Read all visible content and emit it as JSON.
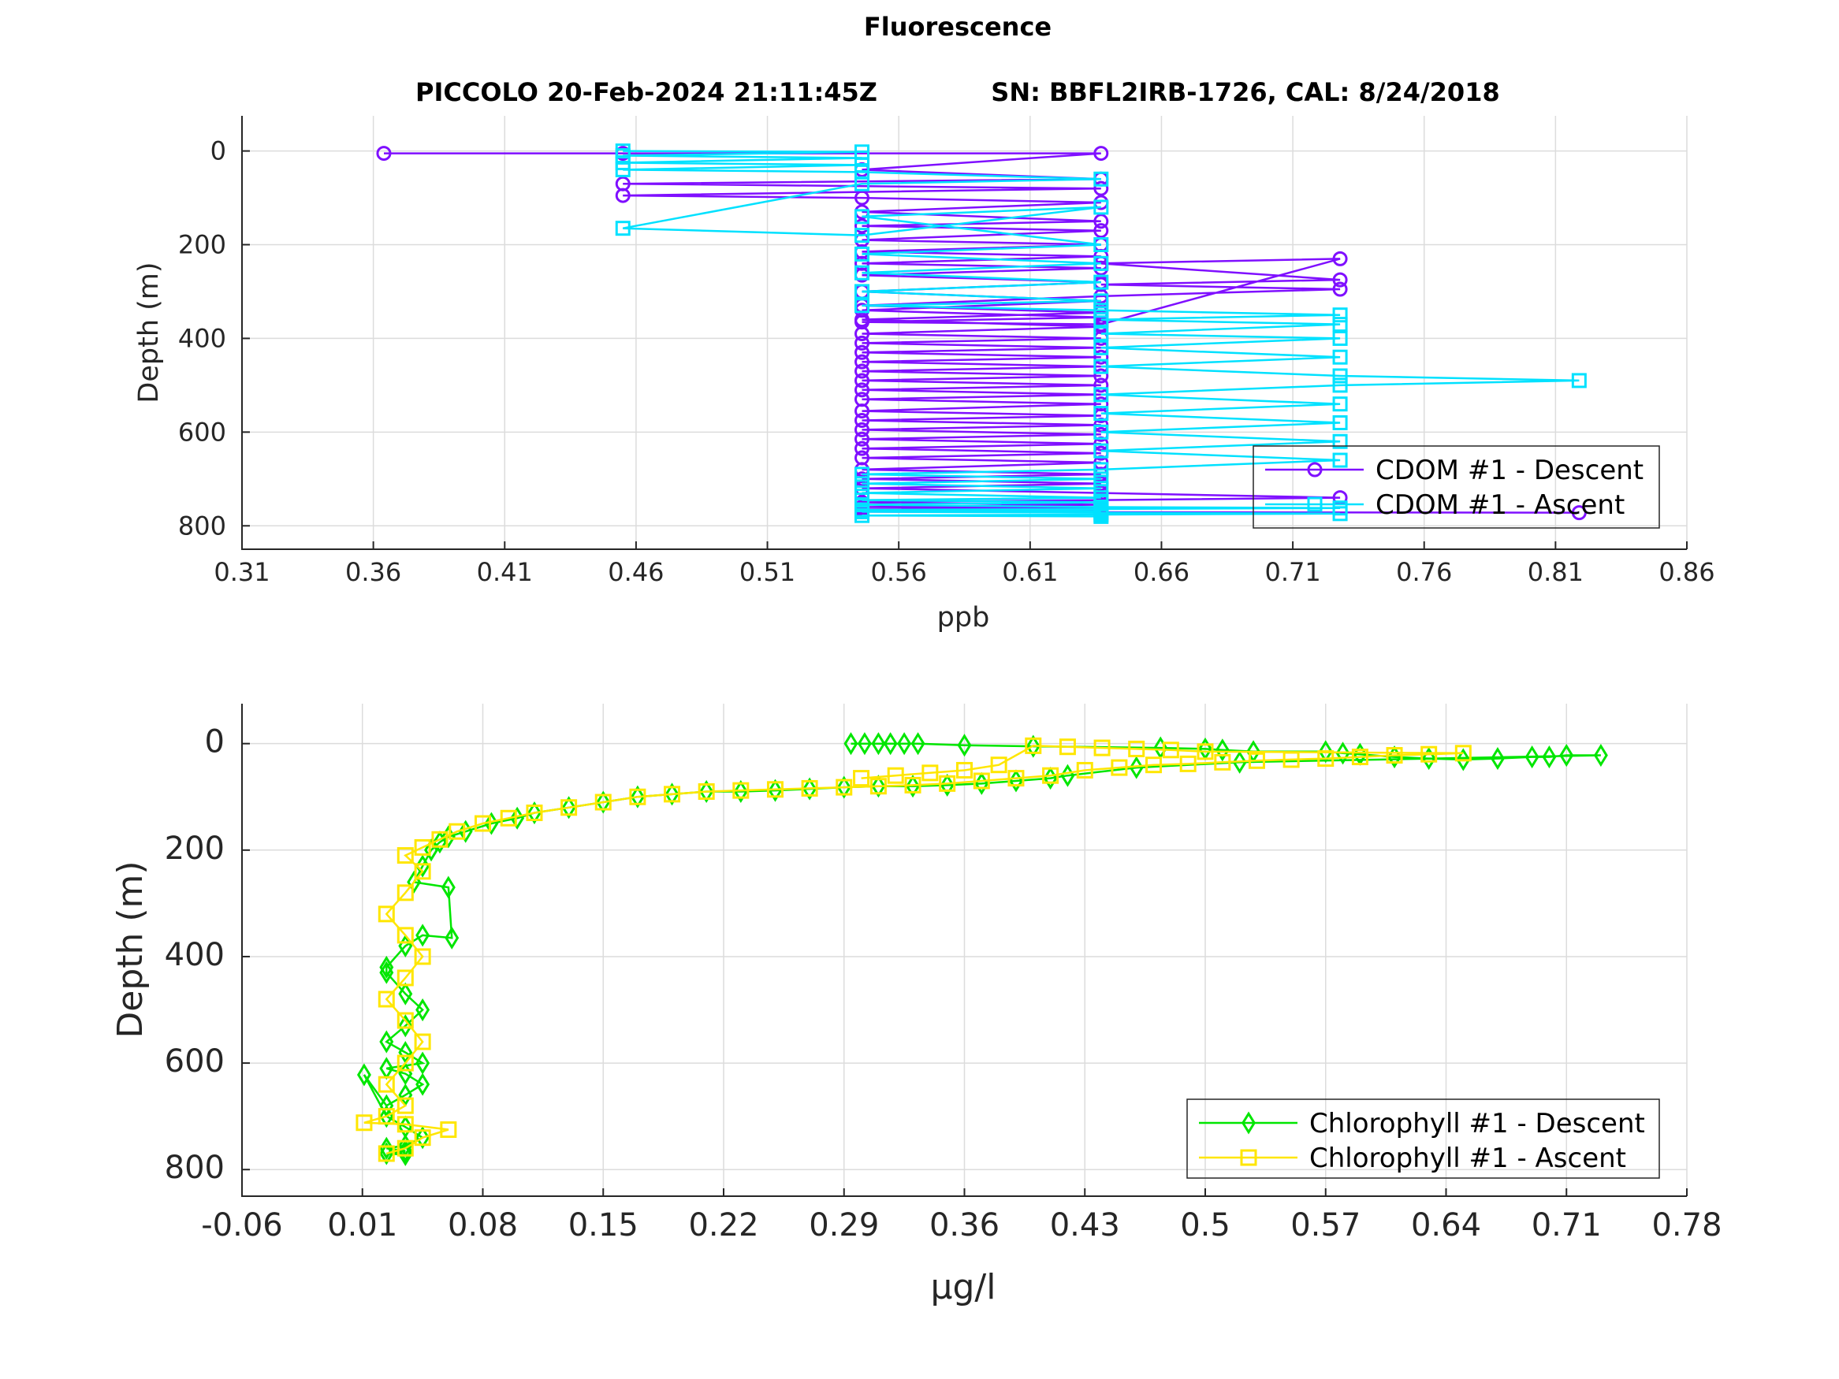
{
  "figure": {
    "title": "Fluorescence",
    "subtitle_left": "PICCOLO 20-Feb-2024 21:11:45Z",
    "subtitle_right": "SN: BBFL2IRB-1726, CAL: 8/24/2018"
  },
  "chart_data": [
    {
      "type": "line",
      "title": "",
      "xlabel": "ppb",
      "ylabel": "Depth (m)",
      "xlim": [
        0.31,
        0.86
      ],
      "ylim": [
        -75,
        850
      ],
      "y_reversed": true,
      "grid": true,
      "legend_position": "bottom-right",
      "xticks": [
        "0.31",
        "0.36",
        "0.41",
        "0.46",
        "0.51",
        "0.56",
        "0.61",
        "0.66",
        "0.71",
        "0.76",
        "0.81",
        "0.86"
      ],
      "yticks": [
        "0",
        "200",
        "400",
        "600",
        "800"
      ],
      "series": [
        {
          "name": "CDOM #1 - Descent",
          "color": "#7f0fff",
          "marker": "circle",
          "x": [
            0.364,
            0.455,
            0.637,
            0.546,
            0.637,
            0.455,
            0.637,
            0.455,
            0.546,
            0.637,
            0.546,
            0.637,
            0.546,
            0.637,
            0.546,
            0.637,
            0.546,
            0.637,
            0.546,
            0.637,
            0.546,
            0.637,
            0.546,
            0.637,
            0.546,
            0.637,
            0.546,
            0.637,
            0.728,
            0.637,
            0.728,
            0.637,
            0.728,
            0.637,
            0.546,
            0.637,
            0.546,
            0.637,
            0.546,
            0.637,
            0.546,
            0.637,
            0.546,
            0.637,
            0.546,
            0.637,
            0.546,
            0.637,
            0.546,
            0.637,
            0.546,
            0.637,
            0.546,
            0.637,
            0.546,
            0.637,
            0.546,
            0.637,
            0.546,
            0.637,
            0.546,
            0.637,
            0.546,
            0.637,
            0.546,
            0.637,
            0.546,
            0.637,
            0.546,
            0.637,
            0.546,
            0.637,
            0.728,
            0.637,
            0.546,
            0.637,
            0.546,
            0.637,
            0.546,
            0.637,
            0.546,
            0.637,
            0.546,
            0.637,
            0.819
          ],
          "y": [
            5,
            5,
            5,
            40,
            60,
            70,
            80,
            95,
            100,
            110,
            130,
            150,
            160,
            170,
            190,
            200,
            215,
            225,
            240,
            250,
            265,
            280,
            300,
            320,
            340,
            355,
            365,
            370,
            230,
            240,
            275,
            285,
            295,
            310,
            330,
            345,
            360,
            375,
            390,
            400,
            410,
            420,
            430,
            440,
            450,
            460,
            470,
            480,
            490,
            500,
            510,
            520,
            530,
            540,
            555,
            565,
            575,
            585,
            595,
            605,
            615,
            625,
            635,
            645,
            655,
            665,
            680,
            690,
            700,
            710,
            720,
            730,
            740,
            745,
            750,
            755,
            760,
            762,
            765,
            766,
            768,
            769,
            770,
            771,
            772
          ]
        },
        {
          "name": "CDOM #1 - Ascent",
          "color": "#00e1ff",
          "marker": "square",
          "x": [
            0.455,
            0.546,
            0.455,
            0.546,
            0.455,
            0.546,
            0.455,
            0.546,
            0.637,
            0.546,
            0.455,
            0.546,
            0.637,
            0.546,
            0.637,
            0.546,
            0.637,
            0.546,
            0.637,
            0.546,
            0.637,
            0.546,
            0.637,
            0.728,
            0.637,
            0.728,
            0.637,
            0.728,
            0.637,
            0.728,
            0.637,
            0.728,
            0.819,
            0.728,
            0.637,
            0.728,
            0.637,
            0.728,
            0.637,
            0.728,
            0.637,
            0.728,
            0.637,
            0.546,
            0.637,
            0.546,
            0.637,
            0.546,
            0.637,
            0.546,
            0.637,
            0.546,
            0.637,
            0.728,
            0.637,
            0.546,
            0.637,
            0.546,
            0.637,
            0.728,
            0.637,
            0.546,
            0.637
          ],
          "y": [
            0,
            2,
            10,
            15,
            25,
            30,
            40,
            45,
            60,
            70,
            165,
            180,
            120,
            140,
            200,
            220,
            240,
            260,
            280,
            300,
            320,
            330,
            340,
            350,
            360,
            370,
            390,
            400,
            420,
            440,
            460,
            480,
            490,
            500,
            520,
            540,
            560,
            580,
            600,
            620,
            640,
            660,
            680,
            690,
            700,
            710,
            720,
            730,
            740,
            745,
            750,
            755,
            760,
            762,
            764,
            766,
            768,
            770,
            772,
            774,
            776,
            778,
            780
          ]
        }
      ]
    },
    {
      "type": "line",
      "title": "",
      "xlabel": "μg/l",
      "ylabel": "Depth (m)",
      "xlim": [
        -0.06,
        0.78
      ],
      "ylim": [
        -75,
        850
      ],
      "y_reversed": true,
      "grid": true,
      "legend_position": "bottom-right",
      "xticks": [
        "-0.06",
        "0.01",
        "0.08",
        "0.15",
        "0.22",
        "0.29",
        "0.36",
        "0.43",
        "0.5",
        "0.57",
        "0.64",
        "0.71",
        "0.78"
      ],
      "yticks": [
        "0",
        "200",
        "400",
        "600",
        "800"
      ],
      "series": [
        {
          "name": "Chlorophyll #1 - Descent",
          "color": "#00e600",
          "marker": "diamond",
          "x": [
            0.294,
            0.302,
            0.31,
            0.317,
            0.325,
            0.333,
            0.36,
            0.4,
            0.474,
            0.5,
            0.51,
            0.528,
            0.57,
            0.58,
            0.59,
            0.61,
            0.63,
            0.65,
            0.67,
            0.69,
            0.7,
            0.71,
            0.73,
            0.52,
            0.46,
            0.42,
            0.41,
            0.39,
            0.37,
            0.35,
            0.33,
            0.31,
            0.29,
            0.27,
            0.25,
            0.23,
            0.21,
            0.19,
            0.17,
            0.15,
            0.13,
            0.11,
            0.1,
            0.085,
            0.07,
            0.06,
            0.055,
            0.05,
            0.045,
            0.04,
            0.06,
            0.062,
            0.045,
            0.035,
            0.024,
            0.024,
            0.035,
            0.045,
            0.035,
            0.024,
            0.035,
            0.045,
            0.024,
            0.035,
            0.045,
            0.035,
            0.024,
            0.011,
            0.024,
            0.035,
            0.045,
            0.035,
            0.024,
            0.035,
            0.024,
            0.035
          ],
          "y": [
            0,
            0,
            0,
            0,
            0,
            0,
            3,
            5,
            8,
            10,
            12,
            15,
            15,
            18,
            20,
            25,
            28,
            30,
            28,
            25,
            25,
            22,
            22,
            35,
            45,
            60,
            65,
            70,
            75,
            78,
            80,
            80,
            82,
            85,
            88,
            90,
            90,
            95,
            100,
            110,
            120,
            130,
            140,
            150,
            165,
            175,
            185,
            200,
            230,
            260,
            270,
            365,
            360,
            380,
            420,
            430,
            470,
            500,
            530,
            560,
            580,
            600,
            610,
            620,
            640,
            660,
            680,
            622,
            700,
            720,
            740,
            755,
            760,
            765,
            770,
            772
          ]
        },
        {
          "name": "Chlorophyll #1 - Ascent",
          "color": "#ffe600",
          "marker": "square",
          "x": [
            0.024,
            0.035,
            0.045,
            0.06,
            0.035,
            0.011,
            0.024,
            0.035,
            0.024,
            0.035,
            0.045,
            0.035,
            0.024,
            0.035,
            0.045,
            0.035,
            0.024,
            0.035,
            0.045,
            0.035,
            0.045,
            0.055,
            0.065,
            0.08,
            0.095,
            0.11,
            0.13,
            0.15,
            0.17,
            0.19,
            0.21,
            0.23,
            0.25,
            0.27,
            0.29,
            0.31,
            0.33,
            0.35,
            0.37,
            0.39,
            0.41,
            0.43,
            0.45,
            0.47,
            0.49,
            0.51,
            0.53,
            0.55,
            0.57,
            0.59,
            0.61,
            0.63,
            0.65,
            0.5,
            0.48,
            0.46,
            0.44,
            0.42,
            0.4,
            0.38,
            0.36,
            0.34,
            0.32,
            0.3
          ],
          "y": [
            770,
            760,
            740,
            725,
            715,
            712,
            700,
            680,
            640,
            600,
            560,
            520,
            480,
            440,
            400,
            360,
            320,
            280,
            240,
            210,
            195,
            180,
            165,
            150,
            140,
            130,
            120,
            110,
            100,
            95,
            90,
            88,
            86,
            84,
            82,
            80,
            78,
            75,
            70,
            65,
            60,
            50,
            45,
            40,
            38,
            35,
            32,
            30,
            28,
            25,
            22,
            20,
            18,
            15,
            12,
            10,
            8,
            6,
            4,
            40,
            50,
            55,
            60,
            65
          ]
        }
      ]
    }
  ]
}
